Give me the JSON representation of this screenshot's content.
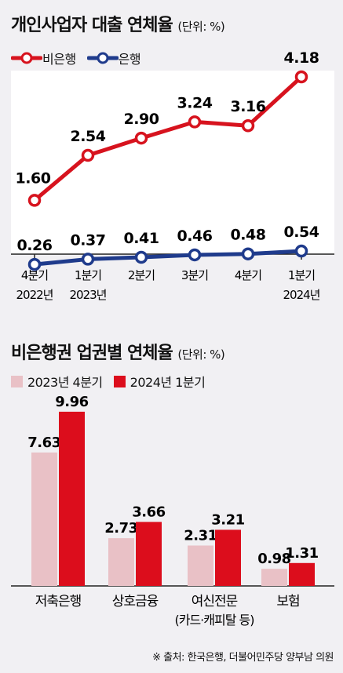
{
  "chart_data": [
    {
      "type": "line",
      "title": "개인사업자 대출 연체율",
      "unit": "(단위: %)",
      "categories": [
        [
          "4분기",
          "2022년"
        ],
        [
          "1분기",
          "2023년"
        ],
        [
          "2분기",
          ""
        ],
        [
          "3분기",
          ""
        ],
        [
          "4분기",
          ""
        ],
        [
          "1분기",
          "2024년"
        ]
      ],
      "series": [
        {
          "name": "비은행",
          "color": "#d7131e",
          "values": [
            1.6,
            2.54,
            2.9,
            3.24,
            3.16,
            4.18
          ]
        },
        {
          "name": "은행",
          "color": "#1f3b8c",
          "values": [
            0.26,
            0.37,
            0.41,
            0.46,
            0.48,
            0.54
          ]
        }
      ],
      "value_labels": {
        "비은행": [
          "1.60",
          "2.54",
          "2.90",
          "3.24",
          "3.16",
          "4.18"
        ],
        "은행": [
          "0.26",
          "0.37",
          "0.41",
          "0.46",
          "0.48",
          "0.54"
        ]
      },
      "ylim": [
        0,
        4.5
      ],
      "grid": false,
      "legend": "top-left"
    },
    {
      "type": "bar",
      "title": "비은행권 업권별 연체율",
      "unit": "(단위: %)",
      "categories": [
        [
          "저축은행",
          ""
        ],
        [
          "상호금융",
          ""
        ],
        [
          "여신전문",
          "(카드·캐피탈 등)"
        ],
        [
          "보험",
          ""
        ]
      ],
      "series": [
        {
          "name": "2023년 4분기",
          "color": "#e9c1c6",
          "values": [
            7.63,
            2.73,
            2.31,
            0.98
          ]
        },
        {
          "name": "2024년 1분기",
          "color": "#dc0d1c",
          "values": [
            9.96,
            3.66,
            3.21,
            1.31
          ]
        }
      ],
      "value_labels": {
        "2023년 4분기": [
          "7.63",
          "2.73",
          "2.31",
          "0.98"
        ],
        "2024년 1분기": [
          "9.96",
          "3.66",
          "3.21",
          "1.31"
        ]
      },
      "ylim": [
        0,
        10
      ],
      "grid": false,
      "legend": "top-left"
    }
  ],
  "source": "※ 출처: 한국은행, 더불어민주당 양부남 의원"
}
